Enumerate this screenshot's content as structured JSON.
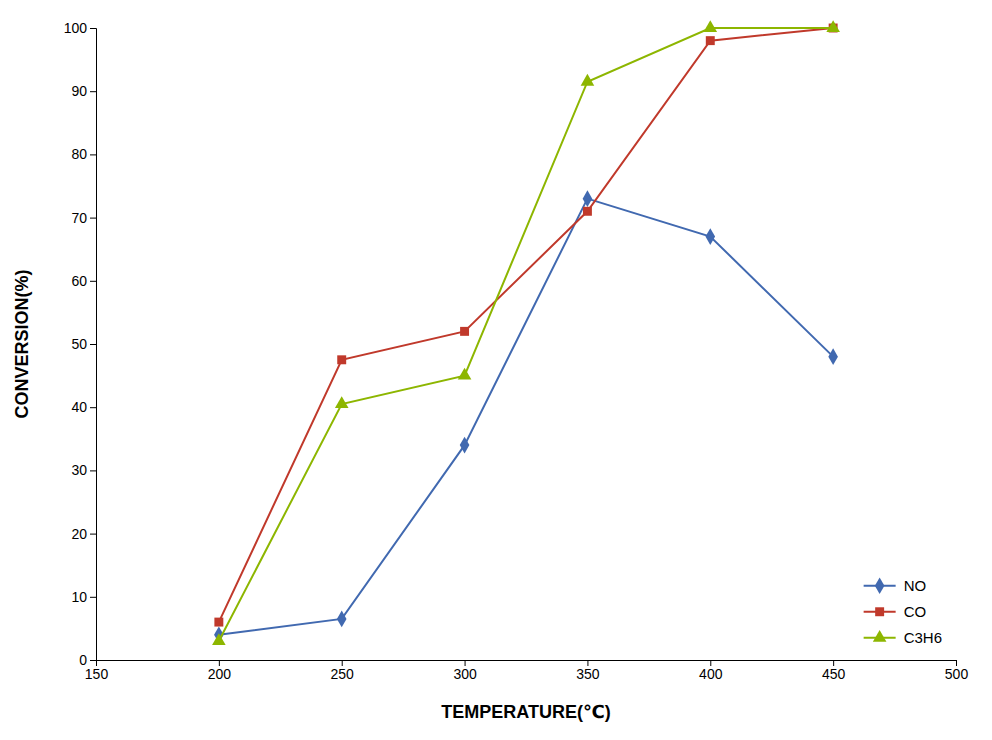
{
  "chart_data": {
    "type": "line",
    "x": [
      200,
      250,
      300,
      350,
      400,
      450
    ],
    "series": [
      {
        "name": "NO",
        "color": "#4169B0",
        "marker": "diamond",
        "values": [
          4,
          6.5,
          34,
          73,
          67,
          48
        ]
      },
      {
        "name": "CO",
        "color": "#C0392B",
        "marker": "square",
        "values": [
          6,
          47.5,
          52,
          71,
          98,
          100
        ]
      },
      {
        "name": "C3H6",
        "color": "#8DB600",
        "marker": "triangle",
        "values": [
          3,
          40.5,
          45,
          91.5,
          100,
          100
        ]
      }
    ],
    "x_label": "TEMPERATURE(℃)",
    "y_label": "CONVERSION(%)",
    "xlim": [
      150,
      500
    ],
    "ylim": [
      0,
      100
    ],
    "xticks": [
      150,
      200,
      250,
      300,
      350,
      400,
      450,
      500
    ],
    "yticks": [
      0,
      10,
      20,
      30,
      40,
      50,
      60,
      70,
      80,
      90,
      100
    ],
    "grid": false,
    "legend": "lower right"
  }
}
